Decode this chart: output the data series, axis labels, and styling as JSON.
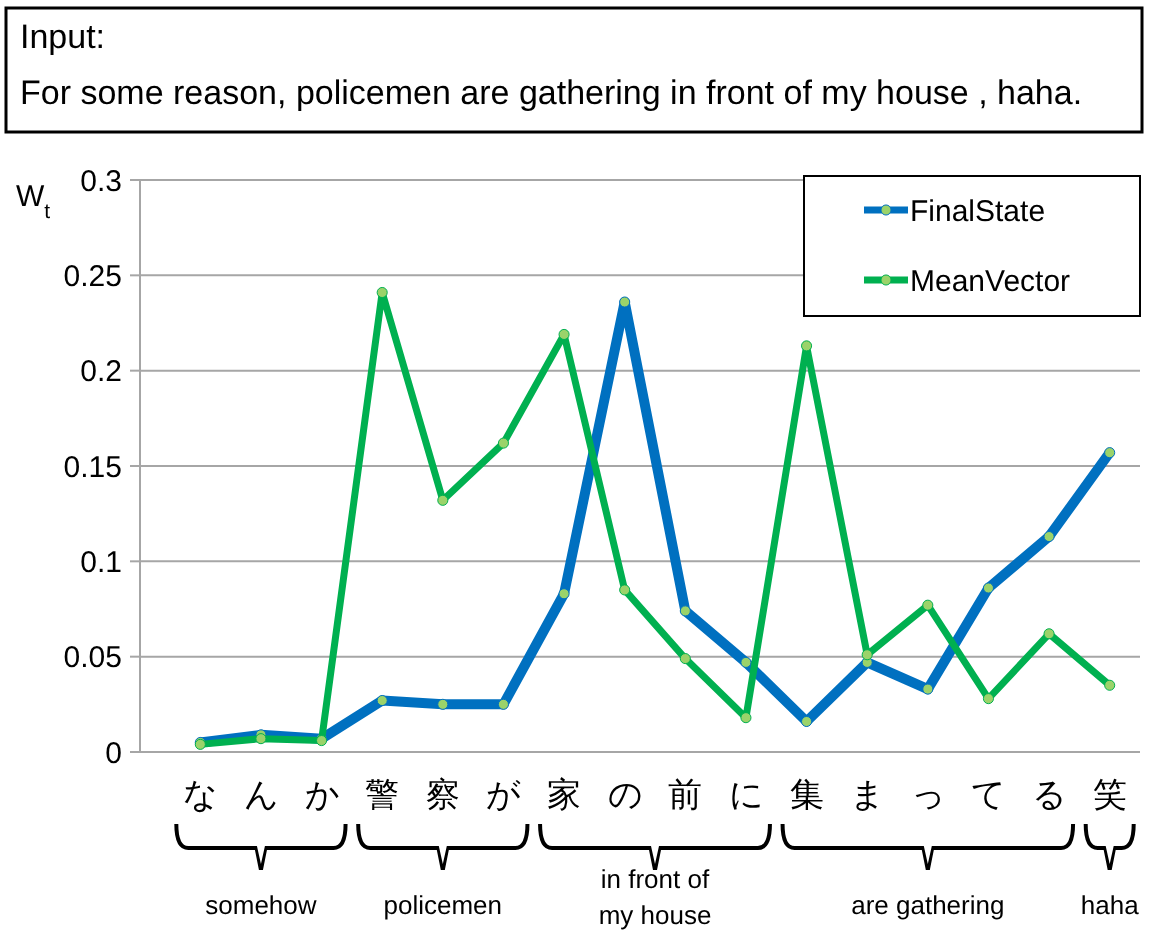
{
  "chart_data": {
    "type": "line",
    "title": "Input:",
    "subtitle": "For some reason, policemen are gathering in front of my house , haha.",
    "ylabel": "W$_{t}$",
    "categories": [
      "な",
      "ん",
      "か",
      "警",
      "察",
      "が",
      "家",
      "の",
      "前",
      "に",
      "集",
      "ま",
      "っ",
      "て",
      "る",
      "笑"
    ],
    "series": [
      {
        "name": "FinalState",
        "color": "#0070c0",
        "values": [
          0.005,
          0.009,
          0.007,
          0.027,
          0.025,
          0.025,
          0.083,
          0.236,
          0.074,
          0.047,
          0.016,
          0.047,
          0.033,
          0.086,
          0.113,
          0.157
        ]
      },
      {
        "name": "MeanVector",
        "color": "#00b050",
        "values": [
          0.004,
          0.007,
          0.006,
          0.241,
          0.132,
          0.162,
          0.219,
          0.085,
          0.049,
          0.018,
          0.213,
          0.051,
          0.077,
          0.028,
          0.062,
          0.035
        ]
      }
    ],
    "ylim": [
      0,
      0.3
    ],
    "yticks": [
      0,
      0.05,
      0.1,
      0.15,
      0.2,
      0.25,
      0.3
    ],
    "grid": "y",
    "legend": "top right",
    "marker": "circle",
    "line_style": "solid",
    "annotations": [
      "somehow",
      "policemen",
      "in front of my house",
      "are gathering",
      "haha"
    ]
  }
}
